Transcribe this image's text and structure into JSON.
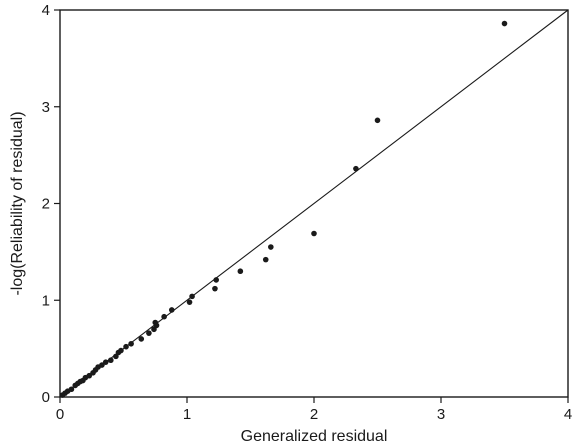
{
  "chart_data": {
    "type": "scatter",
    "xlabel": "Generalized residual",
    "ylabel": "-log(Reliability of residual)",
    "xlim": [
      0,
      4
    ],
    "ylim": [
      0,
      4
    ],
    "xticks": [
      "0",
      "1",
      "2",
      "3",
      "4"
    ],
    "yticks": [
      "0",
      "1",
      "2",
      "3",
      "4"
    ],
    "reference_line": {
      "from": [
        0,
        0
      ],
      "to": [
        4,
        4
      ]
    },
    "grid": false,
    "points": [
      {
        "x": 0.02,
        "y": 0.02
      },
      {
        "x": 0.04,
        "y": 0.04
      },
      {
        "x": 0.06,
        "y": 0.06
      },
      {
        "x": 0.09,
        "y": 0.08
      },
      {
        "x": 0.12,
        "y": 0.12
      },
      {
        "x": 0.14,
        "y": 0.14
      },
      {
        "x": 0.16,
        "y": 0.16
      },
      {
        "x": 0.18,
        "y": 0.17
      },
      {
        "x": 0.2,
        "y": 0.2
      },
      {
        "x": 0.23,
        "y": 0.22
      },
      {
        "x": 0.26,
        "y": 0.25
      },
      {
        "x": 0.28,
        "y": 0.28
      },
      {
        "x": 0.3,
        "y": 0.31
      },
      {
        "x": 0.33,
        "y": 0.33
      },
      {
        "x": 0.36,
        "y": 0.36
      },
      {
        "x": 0.4,
        "y": 0.38
      },
      {
        "x": 0.44,
        "y": 0.42
      },
      {
        "x": 0.46,
        "y": 0.46
      },
      {
        "x": 0.48,
        "y": 0.48
      },
      {
        "x": 0.52,
        "y": 0.52
      },
      {
        "x": 0.56,
        "y": 0.55
      },
      {
        "x": 0.64,
        "y": 0.6
      },
      {
        "x": 0.7,
        "y": 0.66
      },
      {
        "x": 0.74,
        "y": 0.7
      },
      {
        "x": 0.76,
        "y": 0.74
      },
      {
        "x": 0.75,
        "y": 0.77
      },
      {
        "x": 0.82,
        "y": 0.83
      },
      {
        "x": 0.88,
        "y": 0.9
      },
      {
        "x": 1.02,
        "y": 0.98
      },
      {
        "x": 1.04,
        "y": 1.04
      },
      {
        "x": 1.22,
        "y": 1.12
      },
      {
        "x": 1.23,
        "y": 1.21
      },
      {
        "x": 1.42,
        "y": 1.3
      },
      {
        "x": 1.62,
        "y": 1.42
      },
      {
        "x": 1.66,
        "y": 1.55
      },
      {
        "x": 2.0,
        "y": 1.69
      },
      {
        "x": 2.33,
        "y": 2.36
      },
      {
        "x": 2.5,
        "y": 2.86
      },
      {
        "x": 3.5,
        "y": 3.86
      }
    ]
  }
}
